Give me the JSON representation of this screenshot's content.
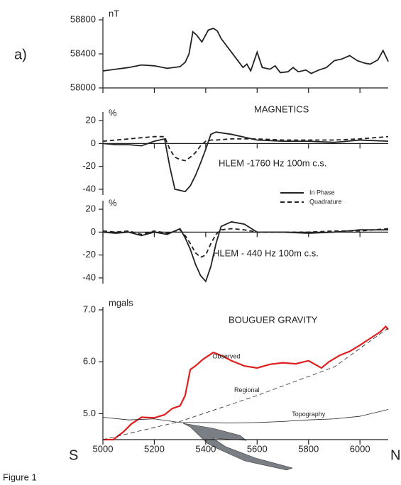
{
  "caption": "Figure 1",
  "chart_data": [
    {
      "type": "line",
      "panel_label": "a)",
      "y_label": "nT",
      "title": "MAGNETICS",
      "ylim": [
        58000,
        58800
      ],
      "yticks": [
        58000,
        58400,
        58800
      ],
      "xlim": [
        5000,
        6110
      ],
      "series": [
        {
          "color": "#222222",
          "dash": false,
          "x": [
            5000,
            5050,
            5100,
            5150,
            5200,
            5250,
            5300,
            5320,
            5335,
            5350,
            5365,
            5385,
            5410,
            5430,
            5445,
            5460,
            5500,
            5525,
            5545,
            5560,
            5575,
            5600,
            5620,
            5650,
            5670,
            5690,
            5720,
            5740,
            5760,
            5790,
            5810,
            5840,
            5870,
            5900,
            5930,
            5960,
            5990,
            6020,
            6040,
            6070,
            6090,
            6110
          ],
          "values": [
            58200,
            58220,
            58240,
            58270,
            58260,
            58230,
            58250,
            58300,
            58400,
            58660,
            58620,
            58540,
            58680,
            58700,
            58670,
            58580,
            58420,
            58320,
            58240,
            58280,
            58200,
            58420,
            58240,
            58220,
            58260,
            58180,
            58190,
            58240,
            58190,
            58210,
            58170,
            58210,
            58240,
            58320,
            58340,
            58380,
            58320,
            58290,
            58280,
            58330,
            58440,
            58310
          ]
        }
      ]
    },
    {
      "type": "line",
      "y_label": "%",
      "title": "HLEM -1760 Hz 100m c.s.",
      "ylim": [
        -45,
        25
      ],
      "yticks": [
        20,
        0,
        -20,
        -40
      ],
      "xlim": [
        5000,
        6110
      ],
      "legend": true,
      "series": [
        {
          "name": "In Phase",
          "color": "#222222",
          "dash": false,
          "x": [
            5000,
            5050,
            5100,
            5150,
            5200,
            5240,
            5260,
            5280,
            5300,
            5320,
            5340,
            5360,
            5380,
            5400,
            5420,
            5440,
            5500,
            5600,
            5700,
            5800,
            5900,
            6000,
            6110
          ],
          "values": [
            0,
            -1,
            -1,
            -2,
            2,
            4,
            -20,
            -40,
            -41,
            -42,
            -37,
            -28,
            -17,
            -5,
            8,
            10,
            8,
            3,
            2,
            2,
            1,
            3,
            2
          ]
        },
        {
          "name": "Quadrature",
          "color": "#222222",
          "dash": true,
          "x": [
            5000,
            5050,
            5100,
            5150,
            5200,
            5240,
            5260,
            5280,
            5300,
            5320,
            5340,
            5360,
            5380,
            5400,
            5420,
            5440,
            5500,
            5600,
            5700,
            5800,
            5900,
            6000,
            6110
          ],
          "values": [
            2,
            3,
            4,
            5,
            6,
            6,
            -5,
            -12,
            -14,
            -15,
            -12,
            -8,
            -2,
            2,
            3,
            3,
            4,
            4,
            3,
            3,
            3,
            4,
            6
          ]
        }
      ]
    },
    {
      "type": "line",
      "y_label": "%",
      "title": "HLEM - 440 Hz 100m c.s.",
      "ylim": [
        -45,
        25
      ],
      "yticks": [
        20,
        0,
        -20,
        -40
      ],
      "xlim": [
        5000,
        6110
      ],
      "series": [
        {
          "color": "#222222",
          "dash": false,
          "x": [
            5000,
            5050,
            5100,
            5150,
            5200,
            5250,
            5300,
            5320,
            5340,
            5360,
            5380,
            5400,
            5420,
            5440,
            5460,
            5500,
            5550,
            5600,
            5700,
            5800,
            5900,
            6000,
            6110
          ],
          "values": [
            0,
            -1,
            0,
            -3,
            0,
            -2,
            3,
            -5,
            -15,
            -28,
            -38,
            -43,
            -30,
            -10,
            5,
            9,
            7,
            0,
            0,
            -1,
            0,
            2,
            2
          ]
        },
        {
          "color": "#222222",
          "dash": true,
          "x": [
            5000,
            5050,
            5100,
            5150,
            5200,
            5250,
            5300,
            5320,
            5340,
            5360,
            5380,
            5400,
            5420,
            5440,
            5460,
            5500,
            5550,
            5600,
            5700,
            5800,
            5900,
            6000,
            6110
          ],
          "values": [
            1,
            0,
            1,
            -2,
            1,
            -1,
            2,
            -3,
            -10,
            -18,
            -22,
            -20,
            -10,
            -2,
            2,
            3,
            2,
            0,
            0,
            0,
            1,
            1,
            3
          ]
        }
      ]
    },
    {
      "type": "line",
      "y_label": "mgals",
      "title": "BOUGUER GRAVITY",
      "x_start_label": "S",
      "x_end_label": "N",
      "ylim": [
        4.5,
        7.0
      ],
      "yticks": [
        {
          "value": 7,
          "label": "7.0"
        },
        {
          "value": 6,
          "label": "6.0"
        },
        {
          "value": 5,
          "label": "5.0"
        }
      ],
      "xlim": [
        5000,
        6110
      ],
      "xticks": [
        5000,
        5200,
        5400,
        5600,
        5800,
        6000
      ],
      "series": [
        {
          "name": "Observed",
          "color": "#e02020",
          "dash": false,
          "width": 2.2,
          "x": [
            5000,
            5040,
            5080,
            5110,
            5150,
            5200,
            5240,
            5270,
            5300,
            5320,
            5340,
            5360,
            5390,
            5430,
            5470,
            5500,
            5550,
            5600,
            5650,
            5700,
            5750,
            5800,
            5850,
            5880,
            5920,
            5960,
            6000,
            6040,
            6080,
            6100,
            6110
          ],
          "values": [
            4.5,
            4.5,
            4.65,
            4.8,
            4.93,
            4.92,
            4.98,
            5.1,
            5.15,
            5.35,
            5.85,
            5.92,
            6.05,
            6.18,
            6.1,
            6.02,
            5.92,
            5.88,
            5.95,
            5.98,
            5.96,
            6.02,
            5.88,
            6.0,
            6.12,
            6.2,
            6.32,
            6.45,
            6.58,
            6.68,
            6.62
          ]
        },
        {
          "name": "Regional",
          "color": "#222222",
          "dash": true,
          "width": 0.8,
          "x": [
            5000,
            5300,
            5600,
            5900,
            6110
          ],
          "values": [
            4.5,
            4.85,
            5.35,
            5.9,
            6.65
          ]
        },
        {
          "name": "Topography",
          "color": "#222222",
          "dash": false,
          "width": 0.8,
          "x": [
            5000,
            5100,
            5200,
            5300,
            5400,
            5500,
            5600,
            5700,
            5800,
            5900,
            6000,
            6110
          ],
          "values": [
            4.93,
            4.88,
            4.9,
            4.83,
            4.83,
            4.82,
            4.83,
            4.85,
            4.88,
            4.9,
            4.95,
            5.08
          ]
        }
      ]
    }
  ]
}
